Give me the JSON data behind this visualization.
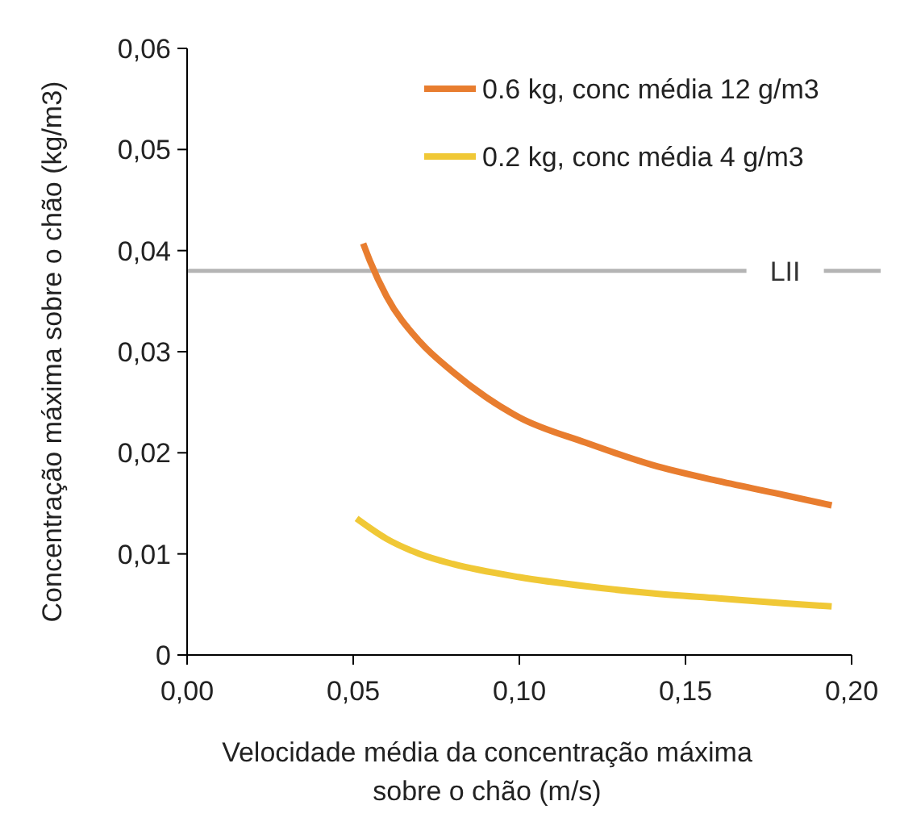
{
  "chart_data": {
    "type": "line",
    "xlabel": "Velocidade média da concentração máxima\nsobre o chão  (m/s)",
    "ylabel": "Concentração máxima sobre o chão  (kg/m3)",
    "xlim": [
      0,
      0.2
    ],
    "xticks": [
      {
        "value": 0,
        "label": "0,00"
      },
      {
        "value": 0.05,
        "label": "0,05"
      },
      {
        "value": 0.1,
        "label": "0,10"
      },
      {
        "value": 0.15,
        "label": "0,15"
      },
      {
        "value": 0.2,
        "label": "0,20"
      }
    ],
    "ylim": [
      0,
      0.06
    ],
    "yticks": [
      0,
      {
        "value": 0.01,
        "label": "0,01"
      },
      {
        "value": 0.02,
        "label": "0,02"
      },
      {
        "value": 0.03,
        "label": "0,03"
      },
      {
        "value": 0.04,
        "label": "0,04"
      },
      {
        "value": 0.05,
        "label": "0,05"
      },
      {
        "value": 0.06,
        "label": "0,06"
      }
    ],
    "grid": false,
    "legend": "top right",
    "marker": "none",
    "series": [
      {
        "name": "0.6 kg, conc média 12 g/m3",
        "color": "#e87d2f",
        "x": [
          0.053,
          0.055,
          0.06,
          0.07,
          0.08,
          0.09,
          0.1,
          0.12,
          0.14,
          0.16,
          0.18,
          0.194
        ],
        "values": [
          0.0407,
          0.039,
          0.0355,
          0.031,
          0.028,
          0.0255,
          0.0235,
          0.021,
          0.0188,
          0.0172,
          0.0158,
          0.0148
        ]
      },
      {
        "name": "0.2 kg, conc média 4 g/m3",
        "color": "#f0c836",
        "x": [
          0.051,
          0.06,
          0.07,
          0.08,
          0.1,
          0.12,
          0.14,
          0.16,
          0.18,
          0.194
        ],
        "values": [
          0.0135,
          0.0115,
          0.01,
          0.009,
          0.0077,
          0.0068,
          0.0061,
          0.0056,
          0.0051,
          0.0048
        ]
      }
    ],
    "ref_lines": [
      {
        "axis": "y",
        "value": 0.038,
        "label": "LII",
        "color": "#b4b4b4"
      }
    ]
  }
}
